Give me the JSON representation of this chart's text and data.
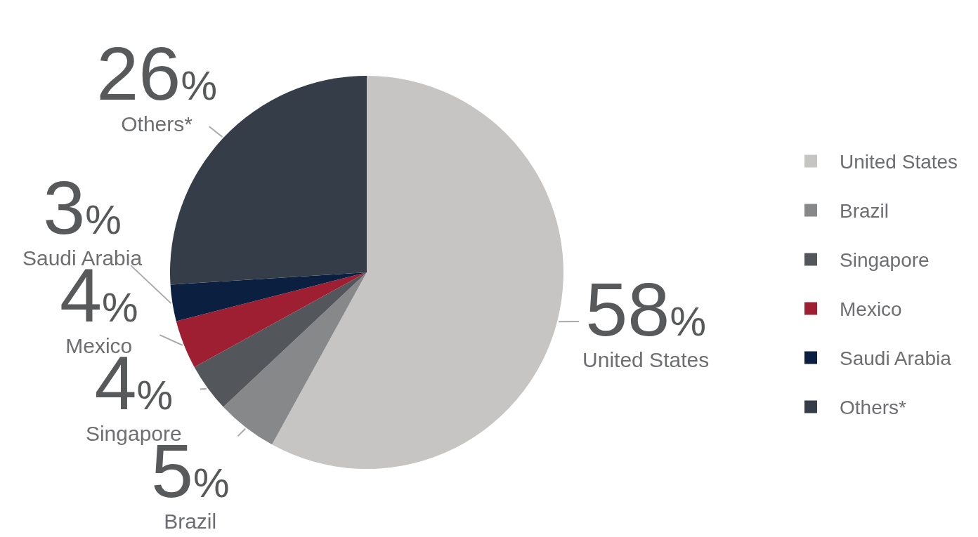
{
  "chart_data": {
    "type": "pie",
    "categories": [
      "United States",
      "Brazil",
      "Singapore",
      "Mexico",
      "Saudi Arabia",
      "Others*"
    ],
    "values": [
      58,
      5,
      4,
      4,
      3,
      26
    ],
    "colors": [
      "#c6c5c3",
      "#87888a",
      "#53575b",
      "#9e1f32",
      "#0b1f40",
      "#343d48"
    ],
    "value_labels": [
      "58%",
      "5%",
      "4%",
      "4%",
      "3%",
      "26%"
    ],
    "legend": "right"
  }
}
